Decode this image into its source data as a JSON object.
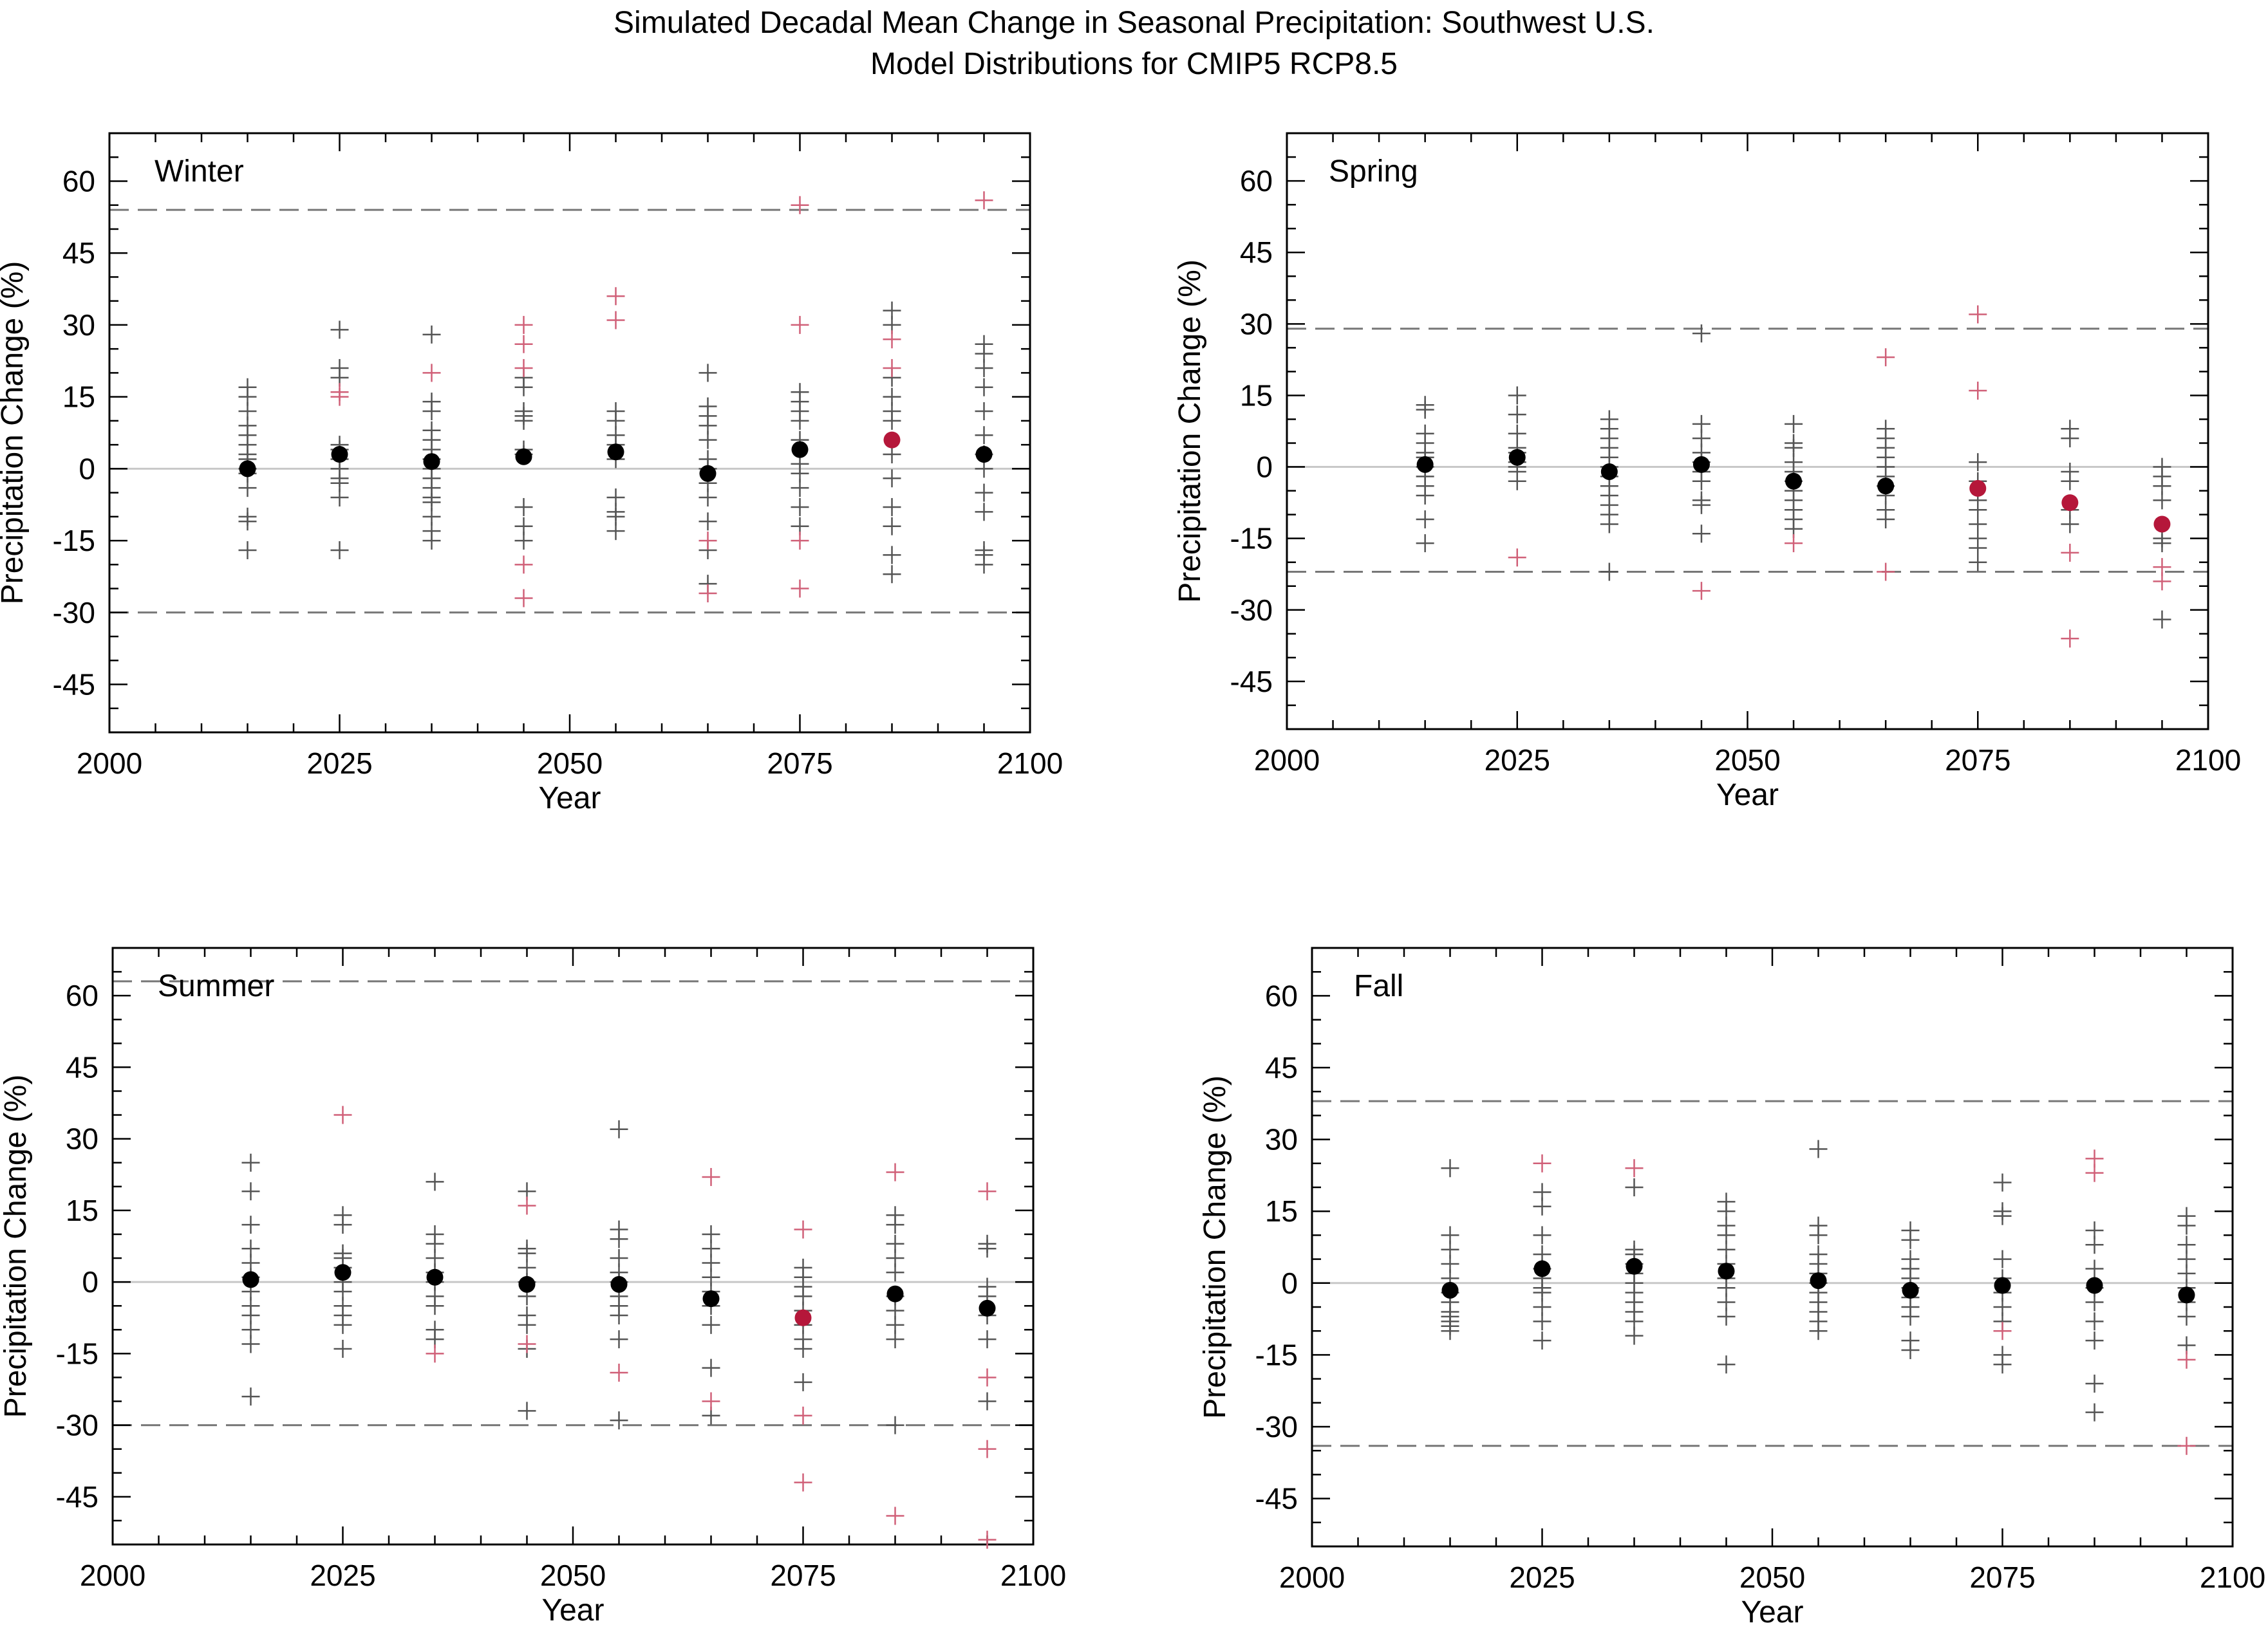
{
  "figure": {
    "title_line_1": "Simulated Decadal Mean Change in Seasonal Precipitation: Southwest U.S.",
    "title_line_2": "Model Distributions for CMIP5 RCP8.5"
  },
  "colors": {
    "neutral_marker": "#000000",
    "significant_marker": "#b5173a",
    "model_cross_black": "#555555",
    "model_cross_red": "#d06078",
    "range_line": "#777777",
    "zero_line": "#c8c8c8"
  },
  "chart_data": [
    {
      "type": "scatter",
      "title": "Winter",
      "xlabel": "Year",
      "ylabel": "Precipitation Change (%)",
      "xlim": [
        2000,
        2100
      ],
      "ylim": [
        -55,
        70
      ],
      "xticks": [
        2000,
        2025,
        2050,
        2075,
        2100
      ],
      "yticks": [
        -45,
        -30,
        -15,
        0,
        15,
        30,
        45,
        60
      ],
      "grid": false,
      "reference_lines": {
        "zero": 0,
        "range_upper": 54,
        "range_lower": -30
      },
      "means": [
        {
          "x": 2015,
          "y": 0,
          "significant": false
        },
        {
          "x": 2025,
          "y": 3,
          "significant": false
        },
        {
          "x": 2035,
          "y": 1.5,
          "significant": false
        },
        {
          "x": 2045,
          "y": 2.5,
          "significant": false
        },
        {
          "x": 2055,
          "y": 3.5,
          "significant": false
        },
        {
          "x": 2065,
          "y": -1,
          "significant": false
        },
        {
          "x": 2075,
          "y": 4,
          "significant": false
        },
        {
          "x": 2085,
          "y": 6,
          "significant": true
        },
        {
          "x": 2095,
          "y": 3,
          "significant": false
        }
      ],
      "models": [
        {
          "x": 2015,
          "black": [
            17,
            15,
            12,
            9,
            7,
            5,
            3,
            2,
            0,
            -1,
            -4,
            -10,
            -11,
            -17
          ],
          "red": []
        },
        {
          "x": 2025,
          "black": [
            29,
            21,
            19,
            5,
            4,
            2,
            0,
            -2,
            -3,
            -6,
            -17
          ],
          "red": [
            16,
            15
          ]
        },
        {
          "x": 2035,
          "black": [
            28,
            14,
            12,
            8,
            6,
            4,
            2,
            0,
            -2,
            -4,
            -6,
            -7,
            -10,
            -13,
            -15
          ],
          "red": [
            20
          ]
        },
        {
          "x": 2045,
          "black": [
            19,
            17,
            12,
            11,
            10,
            4,
            3,
            -8,
            -12,
            -15
          ],
          "red": [
            30,
            26,
            21,
            -20,
            -27
          ]
        },
        {
          "x": 2055,
          "black": [
            12,
            10,
            7,
            5,
            2,
            -6,
            -9,
            -10,
            -13
          ],
          "red": [
            36,
            31
          ]
        },
        {
          "x": 2065,
          "black": [
            20,
            13,
            11,
            9,
            6,
            2,
            0,
            -3,
            -6,
            -11,
            -17,
            -24
          ],
          "red": [
            -15,
            -26
          ]
        },
        {
          "x": 2075,
          "black": [
            16,
            14,
            12,
            10,
            6,
            1,
            -1,
            -4,
            -8,
            -12
          ],
          "red": [
            55,
            30,
            -15,
            -25
          ]
        },
        {
          "x": 2085,
          "black": [
            33,
            30,
            19,
            15,
            12,
            10,
            3,
            -2,
            -8,
            -12,
            -18,
            -22
          ],
          "red": [
            27,
            21
          ]
        },
        {
          "x": 2095,
          "black": [
            26,
            24,
            21,
            17,
            12,
            7,
            3,
            0,
            -5,
            -9,
            -17,
            -18,
            -20
          ],
          "red": [
            56
          ]
        }
      ]
    },
    {
      "type": "scatter",
      "title": "Spring",
      "xlabel": "Year",
      "ylabel": "Precipitation Change (%)",
      "xlim": [
        2000,
        2100
      ],
      "ylim": [
        -55,
        70
      ],
      "xticks": [
        2000,
        2025,
        2050,
        2075,
        2100
      ],
      "yticks": [
        -45,
        -30,
        -15,
        0,
        15,
        30,
        45,
        60
      ],
      "grid": false,
      "reference_lines": {
        "zero": 0,
        "range_upper": 29,
        "range_lower": -22
      },
      "means": [
        {
          "x": 2015,
          "y": 0.5,
          "significant": false
        },
        {
          "x": 2025,
          "y": 2,
          "significant": false
        },
        {
          "x": 2035,
          "y": -1,
          "significant": false
        },
        {
          "x": 2045,
          "y": 0.5,
          "significant": false
        },
        {
          "x": 2055,
          "y": -3,
          "significant": false
        },
        {
          "x": 2065,
          "y": -4,
          "significant": false
        },
        {
          "x": 2075,
          "y": -4.5,
          "significant": true
        },
        {
          "x": 2085,
          "y": -7.5,
          "significant": true
        },
        {
          "x": 2095,
          "y": -12,
          "significant": true
        }
      ],
      "models": [
        {
          "x": 2015,
          "black": [
            13,
            12,
            7,
            5,
            3,
            2,
            0,
            -2,
            -4,
            -6,
            -11,
            -16
          ],
          "red": []
        },
        {
          "x": 2025,
          "black": [
            15,
            11,
            7,
            4,
            3,
            1,
            0,
            -1,
            -3
          ],
          "red": [
            -19
          ]
        },
        {
          "x": 2035,
          "black": [
            10,
            8,
            6,
            4,
            2,
            0,
            -2,
            -4,
            -6,
            -8,
            -10,
            -12,
            -22
          ],
          "red": []
        },
        {
          "x": 2045,
          "black": [
            28,
            9,
            6,
            3,
            1,
            -1,
            -3,
            -7,
            -8,
            -14
          ],
          "red": [
            -26
          ]
        },
        {
          "x": 2055,
          "black": [
            9,
            5,
            4,
            1,
            -1,
            -3,
            -5,
            -7,
            -9,
            -11,
            -13
          ],
          "red": [
            -16
          ]
        },
        {
          "x": 2065,
          "black": [
            8,
            6,
            4,
            2,
            0,
            -2,
            -4,
            -6,
            -9,
            -11
          ],
          "red": [
            23,
            -22
          ]
        },
        {
          "x": 2075,
          "black": [
            1,
            -3,
            -7,
            -9,
            -12,
            -15,
            -17,
            -20
          ],
          "red": [
            32,
            16
          ]
        },
        {
          "x": 2085,
          "black": [
            8,
            6,
            -1,
            -3,
            -9,
            -12
          ],
          "red": [
            -18,
            -36
          ]
        },
        {
          "x": 2095,
          "black": [
            0,
            -2,
            -4,
            -7,
            -15,
            -16,
            -32
          ],
          "red": [
            -21,
            -24
          ]
        }
      ]
    },
    {
      "type": "scatter",
      "title": "Summer",
      "xlabel": "Year",
      "ylabel": "Precipitation Change (%)",
      "xlim": [
        2000,
        2100
      ],
      "ylim": [
        -55,
        70
      ],
      "xticks": [
        2000,
        2025,
        2050,
        2075,
        2100
      ],
      "yticks": [
        -45,
        -30,
        -15,
        0,
        15,
        30,
        45,
        60
      ],
      "grid": false,
      "reference_lines": {
        "zero": 0,
        "range_upper": 63,
        "range_lower": -30
      },
      "means": [
        {
          "x": 2015,
          "y": 0.5,
          "significant": false
        },
        {
          "x": 2025,
          "y": 2,
          "significant": false
        },
        {
          "x": 2035,
          "y": 1,
          "significant": false
        },
        {
          "x": 2045,
          "y": -0.5,
          "significant": false
        },
        {
          "x": 2055,
          "y": -0.5,
          "significant": false
        },
        {
          "x": 2065,
          "y": -3.5,
          "significant": false
        },
        {
          "x": 2075,
          "y": -7.5,
          "significant": true
        },
        {
          "x": 2085,
          "y": -2.5,
          "significant": false
        },
        {
          "x": 2095,
          "y": -5.5,
          "significant": false
        }
      ],
      "models": [
        {
          "x": 2015,
          "black": [
            25,
            19,
            12,
            7,
            4,
            1,
            -2,
            -5,
            -7,
            -10,
            -13,
            -24
          ],
          "red": []
        },
        {
          "x": 2025,
          "black": [
            14,
            12,
            6,
            5,
            3,
            0,
            -2,
            -5,
            -7,
            -9,
            -14
          ],
          "red": [
            35
          ]
        },
        {
          "x": 2035,
          "black": [
            21,
            10,
            8,
            5,
            2,
            0,
            -3,
            -5,
            -10,
            -12
          ],
          "red": [
            -15
          ]
        },
        {
          "x": 2045,
          "black": [
            19,
            7,
            6,
            3,
            0,
            -3,
            -7,
            -9,
            -14,
            -27
          ],
          "red": [
            16,
            -13
          ]
        },
        {
          "x": 2055,
          "black": [
            32,
            11,
            9,
            5,
            2,
            0,
            -3,
            -5,
            -7,
            -12,
            -29
          ],
          "red": [
            -19
          ]
        },
        {
          "x": 2065,
          "black": [
            10,
            7,
            4,
            1,
            -2,
            -5,
            -9,
            -18,
            -28
          ],
          "red": [
            22,
            -25
          ]
        },
        {
          "x": 2075,
          "black": [
            3,
            1,
            -1,
            -3,
            -6,
            -9,
            -12,
            -14,
            -21
          ],
          "red": [
            11,
            -28,
            -42
          ]
        },
        {
          "x": 2085,
          "black": [
            14,
            12,
            8,
            5,
            2,
            -3,
            -6,
            -9,
            -12,
            -30
          ],
          "red": [
            23,
            -49
          ]
        },
        {
          "x": 2095,
          "black": [
            8,
            7,
            -1,
            -3,
            -7,
            -12,
            -25
          ],
          "red": [
            19,
            -20,
            -35,
            -54
          ]
        }
      ]
    },
    {
      "type": "scatter",
      "title": "Fall",
      "xlabel": "Year",
      "ylabel": "Precipitation Change (%)",
      "xlim": [
        2000,
        2100
      ],
      "ylim": [
        -55,
        70
      ],
      "xticks": [
        2000,
        2025,
        2050,
        2075,
        2100
      ],
      "yticks": [
        -45,
        -30,
        -15,
        0,
        15,
        30,
        45,
        60
      ],
      "grid": false,
      "reference_lines": {
        "zero": 0,
        "range_upper": 38,
        "range_lower": -34
      },
      "means": [
        {
          "x": 2015,
          "y": -1.5,
          "significant": false
        },
        {
          "x": 2025,
          "y": 3,
          "significant": false
        },
        {
          "x": 2035,
          "y": 3.5,
          "significant": false
        },
        {
          "x": 2045,
          "y": 2.5,
          "significant": false
        },
        {
          "x": 2055,
          "y": 0.5,
          "significant": false
        },
        {
          "x": 2065,
          "y": -1.5,
          "significant": false
        },
        {
          "x": 2075,
          "y": -0.5,
          "significant": false
        },
        {
          "x": 2085,
          "y": -0.5,
          "significant": false
        },
        {
          "x": 2095,
          "y": -2.5,
          "significant": false
        }
      ],
      "models": [
        {
          "x": 2015,
          "black": [
            24,
            10,
            7,
            4,
            1,
            -2,
            -4,
            -6,
            -7,
            -8,
            -9,
            -10
          ],
          "red": []
        },
        {
          "x": 2025,
          "black": [
            19,
            16,
            10,
            6,
            3,
            1,
            -1,
            -2,
            -5,
            -8,
            -12
          ],
          "red": [
            25
          ]
        },
        {
          "x": 2035,
          "black": [
            20,
            7,
            6,
            4,
            2,
            0,
            -2,
            -4,
            -6,
            -8,
            -11
          ],
          "red": [
            24
          ]
        },
        {
          "x": 2045,
          "black": [
            17,
            15,
            12,
            10,
            7,
            4,
            1,
            -1,
            -4,
            -7,
            -17
          ],
          "red": []
        },
        {
          "x": 2055,
          "black": [
            28,
            12,
            10,
            6,
            4,
            2,
            0,
            -2,
            -4,
            -6,
            -8,
            -10
          ],
          "red": []
        },
        {
          "x": 2065,
          "black": [
            11,
            9,
            5,
            3,
            1,
            -1,
            -3,
            -5,
            -7,
            -12,
            -14
          ],
          "red": []
        },
        {
          "x": 2075,
          "black": [
            21,
            15,
            14,
            5,
            1,
            -2,
            -5,
            -8,
            -15,
            -17
          ],
          "red": [
            -10
          ]
        },
        {
          "x": 2085,
          "black": [
            11,
            8,
            3,
            -1,
            -4,
            -8,
            -12,
            -21,
            -27
          ],
          "red": [
            26,
            23
          ]
        },
        {
          "x": 2095,
          "black": [
            14,
            12,
            8,
            5,
            2,
            -1,
            -4,
            -7,
            -13
          ],
          "red": [
            -16,
            -34
          ]
        }
      ]
    }
  ]
}
